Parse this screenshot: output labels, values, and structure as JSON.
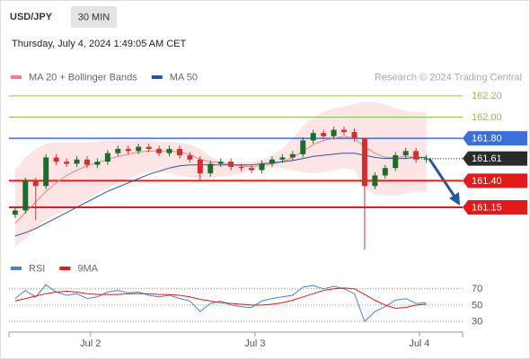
{
  "header": {
    "symbol": "USD/JPY",
    "timeframe": "30 MIN",
    "timestamp": "Thursday, July 4, 2024 1:49:05 AM CET"
  },
  "chart_data": [
    {
      "type": "candlestick",
      "source": "Research © 2024 Trading Central",
      "x": [
        -11,
        -9.5,
        -8,
        -6.5,
        -5,
        -3.5,
        -2,
        -0.5,
        1,
        2.5,
        4,
        5.5,
        7,
        8.5,
        10,
        11.5,
        13,
        14.5,
        16,
        17.5,
        19,
        20.5,
        22,
        23.5,
        25,
        26.5,
        28,
        29.5,
        31,
        32.5,
        34,
        35.5,
        37,
        38.5,
        40,
        41.5,
        43,
        44.5,
        46,
        47.5,
        49
      ],
      "open": [
        161.08,
        161.12,
        161.4,
        161.35,
        161.62,
        161.58,
        161.56,
        161.6,
        161.55,
        161.58,
        161.66,
        161.7,
        161.68,
        161.72,
        161.7,
        161.66,
        161.7,
        161.64,
        161.6,
        161.47,
        161.56,
        161.58,
        161.53,
        161.52,
        161.5,
        161.56,
        161.6,
        161.62,
        161.65,
        161.78,
        161.85,
        161.82,
        161.88,
        161.86,
        161.8,
        161.35,
        161.45,
        161.52,
        161.64,
        161.68,
        161.6
      ],
      "high": [
        161.15,
        161.43,
        161.43,
        161.65,
        161.65,
        161.61,
        161.63,
        161.63,
        161.61,
        161.69,
        161.73,
        161.73,
        161.75,
        161.75,
        161.73,
        161.73,
        161.73,
        161.67,
        161.63,
        161.59,
        161.61,
        161.61,
        161.56,
        161.55,
        161.59,
        161.63,
        161.65,
        161.68,
        161.81,
        161.88,
        161.88,
        161.91,
        161.91,
        161.89,
        161.8,
        161.48,
        161.55,
        161.67,
        161.71,
        161.71,
        161.64
      ],
      "low": [
        161.05,
        161.09,
        161.03,
        161.32,
        161.55,
        161.53,
        161.53,
        161.52,
        161.52,
        161.55,
        161.63,
        161.65,
        161.65,
        161.67,
        161.63,
        161.63,
        161.61,
        161.57,
        161.4,
        161.44,
        161.53,
        161.5,
        161.49,
        161.47,
        161.47,
        161.53,
        161.57,
        161.59,
        161.62,
        161.75,
        161.79,
        161.79,
        161.83,
        161.77,
        160.75,
        161.32,
        161.42,
        161.49,
        161.61,
        161.57,
        161.57
      ],
      "close": [
        161.12,
        161.4,
        161.35,
        161.62,
        161.58,
        161.56,
        161.6,
        161.55,
        161.58,
        161.66,
        161.7,
        161.68,
        161.72,
        161.7,
        161.66,
        161.7,
        161.64,
        161.6,
        161.47,
        161.56,
        161.58,
        161.53,
        161.52,
        161.5,
        161.56,
        161.6,
        161.62,
        161.65,
        161.78,
        161.85,
        161.82,
        161.88,
        161.86,
        161.8,
        161.35,
        161.45,
        161.52,
        161.64,
        161.68,
        161.6,
        161.61
      ],
      "up_color": "#1e6b2a",
      "down_color": "#d32f2f",
      "overlays": [
        {
          "name": "MA 20 + Bollinger Bands",
          "color": "#f08080",
          "values": [
            161.0,
            161.1,
            161.2,
            161.3,
            161.38,
            161.45,
            161.5,
            161.54,
            161.57,
            161.6,
            161.63,
            161.65,
            161.67,
            161.68,
            161.68,
            161.68,
            161.67,
            161.65,
            161.6,
            161.58,
            161.57,
            161.55,
            161.54,
            161.53,
            161.54,
            161.56,
            161.58,
            161.62,
            161.68,
            161.74,
            161.78,
            161.8,
            161.82,
            161.8,
            161.72,
            161.66,
            161.62,
            161.62,
            161.63,
            161.62,
            161.62
          ],
          "upper": [
            161.5,
            161.62,
            161.7,
            161.75,
            161.76,
            161.76,
            161.76,
            161.76,
            161.77,
            161.78,
            161.78,
            161.78,
            161.78,
            161.78,
            161.77,
            161.77,
            161.76,
            161.74,
            161.7,
            161.63,
            161.58,
            161.57,
            161.57,
            161.58,
            161.6,
            161.64,
            161.7,
            161.8,
            161.92,
            162.0,
            162.05,
            162.08,
            162.1,
            162.12,
            162.15,
            162.14,
            162.12,
            162.08,
            162.06,
            162.05,
            162.05
          ],
          "lower": [
            160.78,
            160.85,
            160.95,
            161.03,
            161.08,
            161.12,
            161.17,
            161.22,
            161.28,
            161.33,
            161.38,
            161.42,
            161.46,
            161.48,
            161.48,
            161.47,
            161.45,
            161.43,
            161.42,
            161.43,
            161.44,
            161.45,
            161.47,
            161.5,
            161.51,
            161.52,
            161.52,
            161.5,
            161.48,
            161.47,
            161.48,
            161.5,
            161.52,
            161.5,
            161.33,
            161.27,
            161.26,
            161.26,
            161.28,
            161.3,
            161.3
          ]
        },
        {
          "name": "MA 50",
          "color": "#2b5797",
          "values": [
            160.88,
            160.91,
            160.95,
            161.0,
            161.05,
            161.1,
            161.15,
            161.2,
            161.25,
            161.3,
            161.34,
            161.38,
            161.42,
            161.46,
            161.49,
            161.52,
            161.54,
            161.55,
            161.55,
            161.55,
            161.55,
            161.55,
            161.55,
            161.55,
            161.56,
            161.57,
            161.58,
            161.59,
            161.61,
            161.63,
            161.64,
            161.65,
            161.66,
            161.66,
            161.64,
            161.62,
            161.61,
            161.61,
            161.61,
            161.62,
            161.62
          ]
        }
      ],
      "levels": [
        {
          "value": 162.2,
          "label": "162.20",
          "color": "#8bc34a",
          "style": "plain"
        },
        {
          "value": 162.0,
          "label": "162.00",
          "color": "#8bc34a",
          "style": "plain"
        },
        {
          "value": 161.8,
          "label": "161.80",
          "color": "#3d6fd9",
          "style": "boxed"
        },
        {
          "value": 161.61,
          "label": "161.61",
          "color": "#2b2b2b",
          "style": "current"
        },
        {
          "value": 161.4,
          "label": "161.40",
          "color": "#e31a1a",
          "style": "boxed"
        },
        {
          "value": 161.15,
          "label": "161.15",
          "color": "#e31a1a",
          "style": "boxed"
        }
      ],
      "xlim": [
        -11.9,
        54.3
      ],
      "ylim": [
        160.735,
        162.3
      ]
    },
    {
      "type": "line",
      "series": [
        {
          "name": "RSI",
          "color": "#4a7fd4",
          "values": [
            58,
            68,
            60,
            75,
            66,
            62,
            64,
            58,
            60,
            66,
            68,
            65,
            66,
            62,
            60,
            62,
            58,
            55,
            42,
            52,
            55,
            50,
            48,
            47,
            55,
            58,
            60,
            62,
            72,
            74,
            70,
            73,
            70,
            64,
            30,
            42,
            48,
            56,
            58,
            52,
            53
          ]
        },
        {
          "name": "9MA",
          "color": "#e31a1a",
          "values": [
            55,
            58,
            61,
            64,
            66,
            67,
            66,
            64,
            63,
            63,
            63,
            64,
            64,
            64,
            63,
            63,
            62,
            60,
            57,
            55,
            53,
            52,
            51,
            50,
            50,
            51,
            53,
            56,
            60,
            64,
            68,
            70,
            71,
            70,
            63,
            56,
            50,
            46,
            47,
            50,
            51
          ]
        }
      ],
      "ylim": [
        19,
        94
      ],
      "yticks": [
        30,
        50,
        70
      ],
      "xticks": [
        {
          "value": 0,
          "label": "Jul 2"
        },
        {
          "value": 24,
          "label": "Jul 3"
        },
        {
          "value": 48,
          "label": "Jul 4"
        }
      ]
    }
  ]
}
